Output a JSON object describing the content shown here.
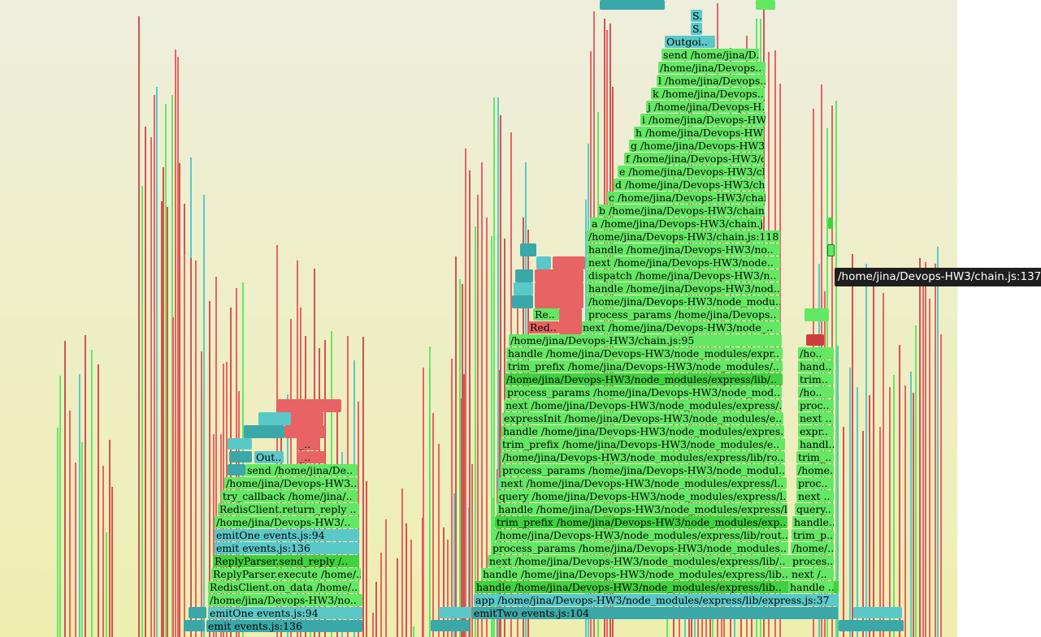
{
  "tooltip": {
    "text": "/home/jina/Devops-HW3/chain.js:137"
  },
  "colors": {
    "green": "#63e863",
    "green_dark": "#3ed23e",
    "teal": "#5bc8c8",
    "teal_dark": "#3aa8a8",
    "red": "#e86363",
    "bg_top": "#eeeedd",
    "bg_bottom": "#eeeeb0"
  },
  "frames": {
    "center": [
      "S..",
      "S..",
      "Outgoi..",
      "send /home/jina/D..",
      "/home/jina/Devops..",
      "l /home/jina/Devops..",
      "k /home/jina/Devops..",
      "j /home/jina/Devops-H..",
      "i /home/jina/Devops-HW..",
      "h /home/jina/Devops-HW3..",
      "g /home/jina/Devops-HW3..",
      "f /home/jina/Devops-HW3/c..",
      "e /home/jina/Devops-HW3/ch..",
      "d /home/jina/Devops-HW3/ch..",
      "c /home/jina/Devops-HW3/chain..",
      "b /home/jina/Devops-HW3/chain.j..",
      "a /home/jina/Devops-HW3/chain.js..",
      "/home/jina/Devops-HW3/chain.js:118",
      "handle /home/jina/Devops-HW3/no..",
      "next /home/jina/Devops-HW3/node..",
      "dispatch /home/jina/Devops-HW3/n..",
      "handle /home/jina/Devops-HW3/nod..",
      "/home/jina/Devops-HW3/node_modu..",
      "process_params /home/jina/Devops..",
      "next /home/jina/Devops-HW3/node_..",
      "/home/jina/Devops-HW3/chain.js:95",
      "handle /home/jina/Devops-HW3/node_modules/expr..",
      "trim_prefix /home/jina/Devops-HW3/node_modules/..",
      "/home/jina/Devops-HW3/node_modules/express/lib/..",
      "process_params /home/jina/Devops-HW3/node_mod..",
      "next /home/jina/Devops-HW3/node_modules/express/..",
      "expressInit /home/jina/Devops-HW3/node_modules/e..",
      "handle /home/jina/Devops-HW3/node_modules/expres..",
      "trim_prefix /home/jina/Devops-HW3/node_modules/e..",
      "/home/jina/Devops-HW3/node_modules/express/lib/ro..",
      "process_params /home/jina/Devops-HW3/node_modul..",
      "next /home/jina/Devops-HW3/node_modules/express/l..",
      "query /home/jina/Devops-HW3/node_modules/express/l..",
      "handle /home/jina/Devops-HW3/node_modules/express/l..",
      "trim_prefix /home/jina/Devops-HW3/node_modules/exp..",
      "/home/jina/Devops-HW3/node_modules/express/lib/rout..",
      "process_params /home/jina/Devops-HW3/node_modules..",
      "next /home/jina/Devops-HW3/node_modules/express/lib/..",
      "handle /home/jina/Devops-HW3/node_modules/express/lib..",
      "handle /home/jina/Devops-HW3/node_modules/express/lib..",
      "app /home/jina/Devops-HW3/node_modules/express/lib/express.js:37",
      "emitTwo events.js:104",
      "emit events.js:136"
    ],
    "red_labels": [
      "Re..",
      "Red.."
    ],
    "right": [
      "/ho..",
      "hand..",
      "trim..",
      "/ho..",
      "proc..",
      "next ..",
      "expr..",
      "handl..",
      "trim_..",
      "/home..",
      "proc..",
      "next ..",
      "query..",
      "handle..",
      "trim_p..",
      "/home/..",
      "proces..",
      "next /..",
      "handle .."
    ],
    "left": [
      "Out..",
      "_..",
      "_..",
      "send /home/jina/De..",
      "/home/jina/Devops-HW3..",
      "try_callback /home/jina/..",
      "RedisClient.return_reply ..",
      "/home/jina/Devops-HW3/..",
      "emitOne events.js:94",
      "emit events.js:136",
      "ReplyParser.send_reply /..",
      "ReplyParser.execute /home/..",
      "RedisClient.on_data /home/..",
      "/home/jina/Devops-HW3/no..",
      "emitOne events.js:94",
      "emit events.js:136"
    ]
  }
}
